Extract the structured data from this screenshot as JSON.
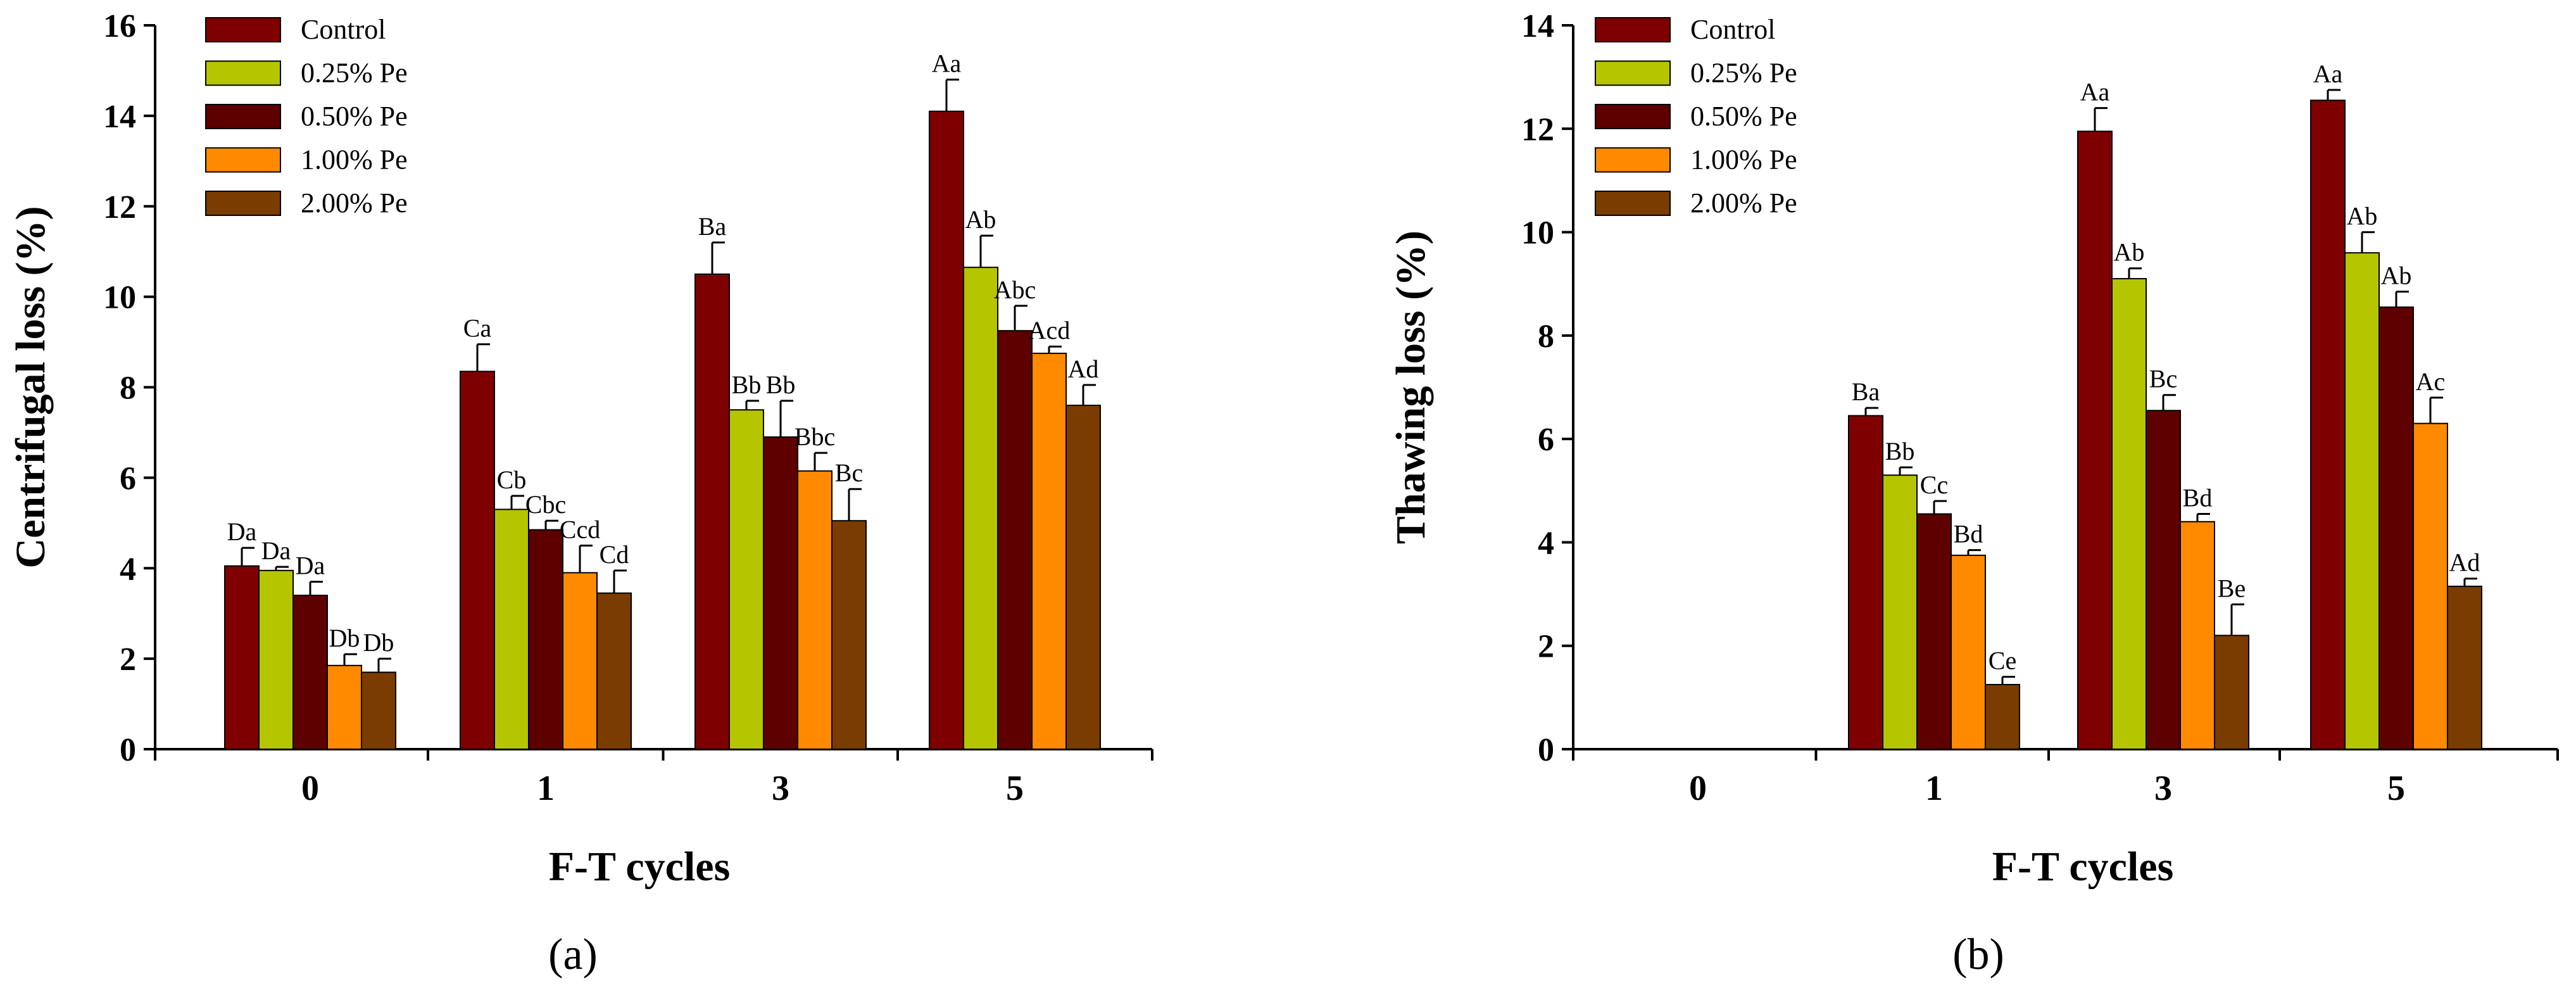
{
  "chart_data": [
    {
      "type": "bar",
      "panel_label": "(a)",
      "xlabel": "F-T cycles",
      "ylabel": "Centrifugal loss (%)",
      "ylim": [
        0,
        16
      ],
      "yticks": [
        0,
        2,
        4,
        6,
        8,
        10,
        12,
        14,
        16
      ],
      "categories": [
        "0",
        "1",
        "3",
        "5"
      ],
      "legend_position": "top-left",
      "series": [
        {
          "name": "Control",
          "color": "#7f0000",
          "values": [
            4.05,
            8.35,
            10.5,
            14.1
          ],
          "errors": [
            0.4,
            0.6,
            0.7,
            0.7
          ],
          "labels": [
            "Da",
            "Ca",
            "Ba",
            "Aa"
          ]
        },
        {
          "name": "0.25% Pe",
          "color": "#b5c600",
          "values": [
            3.95,
            5.3,
            7.5,
            10.65
          ],
          "errors": [
            0.08,
            0.3,
            0.2,
            0.7
          ],
          "labels": [
            "Da",
            "Cb",
            "Bb",
            "Ab"
          ]
        },
        {
          "name": "0.50% Pe",
          "color": "#5e0000",
          "values": [
            3.4,
            4.85,
            6.9,
            9.25
          ],
          "errors": [
            0.3,
            0.2,
            0.8,
            0.55
          ],
          "labels": [
            "Da",
            "Cbc",
            "Bb",
            "Abc"
          ]
        },
        {
          "name": "1.00% Pe",
          "color": "#ff8a00",
          "values": [
            1.85,
            3.9,
            6.15,
            8.75
          ],
          "errors": [
            0.25,
            0.6,
            0.4,
            0.15
          ],
          "labels": [
            "Db",
            "Ccd",
            "Bbc",
            "Acd"
          ]
        },
        {
          "name": "2.00% Pe",
          "color": "#7a3c00",
          "values": [
            1.7,
            3.45,
            5.05,
            7.6
          ],
          "errors": [
            0.3,
            0.5,
            0.7,
            0.45
          ],
          "labels": [
            "Db",
            "Cd",
            "Bc",
            "Ad"
          ]
        }
      ]
    },
    {
      "type": "bar",
      "panel_label": "(b)",
      "xlabel": "F-T cycles",
      "ylabel": "Thawing loss (%)",
      "ylim": [
        0,
        14
      ],
      "yticks": [
        0,
        2,
        4,
        6,
        8,
        10,
        12,
        14
      ],
      "categories": [
        "0",
        "1",
        "3",
        "5"
      ],
      "legend_position": "top-left",
      "series": [
        {
          "name": "Control",
          "color": "#7f0000",
          "values": [
            null,
            6.45,
            11.95,
            12.55
          ],
          "errors": [
            0,
            0.15,
            0.45,
            0.2
          ],
          "labels": [
            "",
            "Ba",
            "Aa",
            "Aa"
          ]
        },
        {
          "name": "0.25% Pe",
          "color": "#b5c600",
          "values": [
            null,
            5.3,
            9.1,
            9.6
          ],
          "errors": [
            0,
            0.15,
            0.2,
            0.4
          ],
          "labels": [
            "",
            "Bb",
            "Ab",
            "Ab"
          ]
        },
        {
          "name": "0.50% Pe",
          "color": "#5e0000",
          "values": [
            null,
            4.55,
            6.55,
            8.55
          ],
          "errors": [
            0,
            0.25,
            0.3,
            0.3
          ],
          "labels": [
            "",
            "Cc",
            "Bc",
            "Ab"
          ]
        },
        {
          "name": "1.00% Pe",
          "color": "#ff8a00",
          "values": [
            null,
            3.75,
            4.4,
            6.3
          ],
          "errors": [
            0,
            0.1,
            0.15,
            0.5
          ],
          "labels": [
            "",
            "Bd",
            "Bd",
            "Ac"
          ]
        },
        {
          "name": "2.00% Pe",
          "color": "#7a3c00",
          "values": [
            null,
            1.25,
            2.2,
            3.15
          ],
          "errors": [
            0,
            0.15,
            0.6,
            0.15
          ],
          "labels": [
            "",
            "Ce",
            "Be",
            "Ad"
          ]
        }
      ]
    }
  ]
}
